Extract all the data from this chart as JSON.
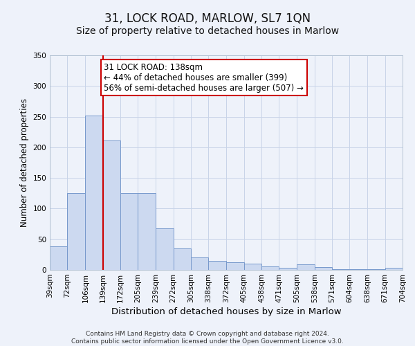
{
  "title": "31, LOCK ROAD, MARLOW, SL7 1QN",
  "subtitle": "Size of property relative to detached houses in Marlow",
  "xlabel": "Distribution of detached houses by size in Marlow",
  "ylabel": "Number of detached properties",
  "bar_left_edges": [
    39,
    72,
    106,
    139,
    172,
    205,
    239,
    272,
    305,
    338,
    372,
    405,
    438,
    471,
    505,
    538,
    571,
    604,
    638,
    671
  ],
  "bar_heights": [
    38,
    125,
    252,
    211,
    125,
    125,
    68,
    35,
    20,
    15,
    12,
    10,
    6,
    3,
    9,
    4,
    1,
    1,
    1,
    3
  ],
  "bin_width": 33,
  "bar_color": "#ccd9f0",
  "bar_edge_color": "#7799cc",
  "vline_color": "#cc0000",
  "vline_x": 139,
  "annotation_text": "31 LOCK ROAD: 138sqm\n← 44% of detached houses are smaller (399)\n56% of semi-detached houses are larger (507) →",
  "annotation_box_color": "#cc0000",
  "annotation_text_color": "#000000",
  "ylim": [
    0,
    350
  ],
  "yticks": [
    0,
    50,
    100,
    150,
    200,
    250,
    300,
    350
  ],
  "xtick_labels": [
    "39sqm",
    "72sqm",
    "106sqm",
    "139sqm",
    "172sqm",
    "205sqm",
    "239sqm",
    "272sqm",
    "305sqm",
    "338sqm",
    "372sqm",
    "405sqm",
    "438sqm",
    "471sqm",
    "505sqm",
    "538sqm",
    "571sqm",
    "604sqm",
    "638sqm",
    "671sqm",
    "704sqm"
  ],
  "xtick_positions": [
    39,
    72,
    106,
    139,
    172,
    205,
    239,
    272,
    305,
    338,
    372,
    405,
    438,
    471,
    505,
    538,
    571,
    604,
    638,
    671,
    704
  ],
  "grid_color": "#c8d4e8",
  "background_color": "#eef2fa",
  "footer_text": "Contains HM Land Registry data © Crown copyright and database right 2024.\nContains public sector information licensed under the Open Government Licence v3.0.",
  "title_fontsize": 12,
  "subtitle_fontsize": 10,
  "xlabel_fontsize": 9.5,
  "ylabel_fontsize": 8.5,
  "tick_fontsize": 7.5,
  "footer_fontsize": 6.5,
  "annot_fontsize": 8.5
}
